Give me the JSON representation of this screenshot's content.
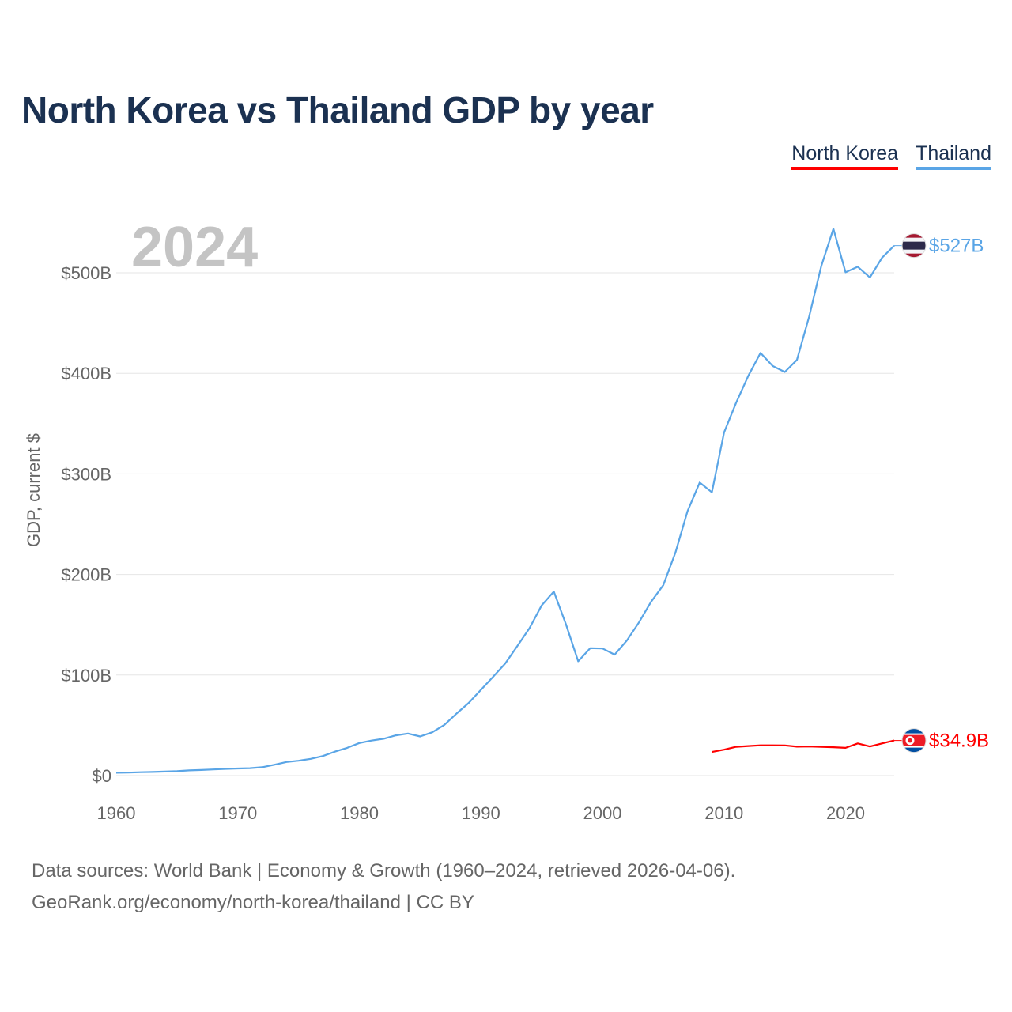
{
  "title": "North Korea vs Thailand GDP by year",
  "legend": {
    "north_korea": "North Korea",
    "thailand": "Thailand"
  },
  "footer": {
    "line1": "Data sources: World Bank | Economy & Growth (1960–2024, retrieved 2026-04-06).",
    "line2": "GeoRank.org/economy/north-korea/thailand | CC BY"
  },
  "colors": {
    "north_korea": "#ff0000",
    "thailand": "#5aa5e6",
    "grid": "#e6e6e6",
    "title": "#1b3151"
  },
  "chart_data": {
    "type": "line",
    "title": "North Korea vs Thailand GDP by year",
    "current_year_label": "2024",
    "ylabel": "GDP, current $",
    "xlabel": "",
    "xlim": [
      1960,
      2024
    ],
    "ylim": [
      0,
      550
    ],
    "y_unit": "billions USD",
    "x_ticks": [
      1960,
      1970,
      1980,
      1990,
      2000,
      2010,
      2020
    ],
    "x_tick_labels": [
      "1960",
      "1970",
      "1980",
      "1990",
      "2000",
      "2010",
      "2020"
    ],
    "y_ticks": [
      0,
      100,
      200,
      300,
      400,
      500
    ],
    "y_tick_labels": [
      "$0",
      "$100B",
      "$200B",
      "$300B",
      "$400B",
      "$500B"
    ],
    "series": [
      {
        "name": "Thailand",
        "color": "#5aa5e6",
        "end_label": "$527B",
        "flag": "thailand-flag-icon",
        "x": [
          1960,
          1961,
          1962,
          1963,
          1964,
          1965,
          1966,
          1967,
          1968,
          1969,
          1970,
          1971,
          1972,
          1973,
          1974,
          1975,
          1976,
          1977,
          1978,
          1979,
          1980,
          1981,
          1982,
          1983,
          1984,
          1985,
          1986,
          1987,
          1988,
          1989,
          1990,
          1991,
          1992,
          1993,
          1994,
          1995,
          1996,
          1997,
          1998,
          1999,
          2000,
          2001,
          2002,
          2003,
          2004,
          2005,
          2006,
          2007,
          2008,
          2009,
          2010,
          2011,
          2012,
          2013,
          2014,
          2015,
          2016,
          2017,
          2018,
          2019,
          2020,
          2021,
          2022,
          2023,
          2024
        ],
        "values": [
          2.8,
          3.0,
          3.4,
          3.6,
          4.0,
          4.4,
          5.2,
          5.6,
          6.1,
          6.7,
          7.1,
          7.4,
          8.3,
          10.8,
          13.5,
          14.8,
          16.7,
          19.5,
          23.9,
          27.6,
          32.4,
          34.8,
          36.6,
          40.0,
          41.8,
          38.9,
          43.1,
          50.5,
          61.7,
          72.3,
          85.3,
          98.2,
          111.5,
          128.9,
          146.7,
          169.3,
          183.0,
          150.2,
          113.7,
          126.7,
          126.4,
          120.3,
          134.3,
          152.3,
          172.9,
          189.3,
          221.8,
          262.9,
          291.4,
          281.7,
          341.1,
          370.8,
          397.6,
          420.3,
          407.3,
          401.3,
          413.4,
          456.4,
          506.8,
          543.7,
          500.5,
          506.0,
          495.4,
          514.9,
          527.0
        ]
      },
      {
        "name": "North Korea",
        "color": "#ff0000",
        "end_label": "$34.9B",
        "flag": "north-korea-flag-icon",
        "x": [
          2009,
          2010,
          2011,
          2012,
          2013,
          2014,
          2015,
          2016,
          2017,
          2018,
          2019,
          2020,
          2021,
          2022,
          2023,
          2024
        ],
        "values": [
          23.5,
          25.8,
          28.6,
          29.4,
          30.1,
          30.1,
          30.0,
          28.8,
          29.0,
          28.5,
          28.2,
          27.6,
          32.0,
          28.9,
          32.0,
          34.9
        ]
      }
    ]
  }
}
